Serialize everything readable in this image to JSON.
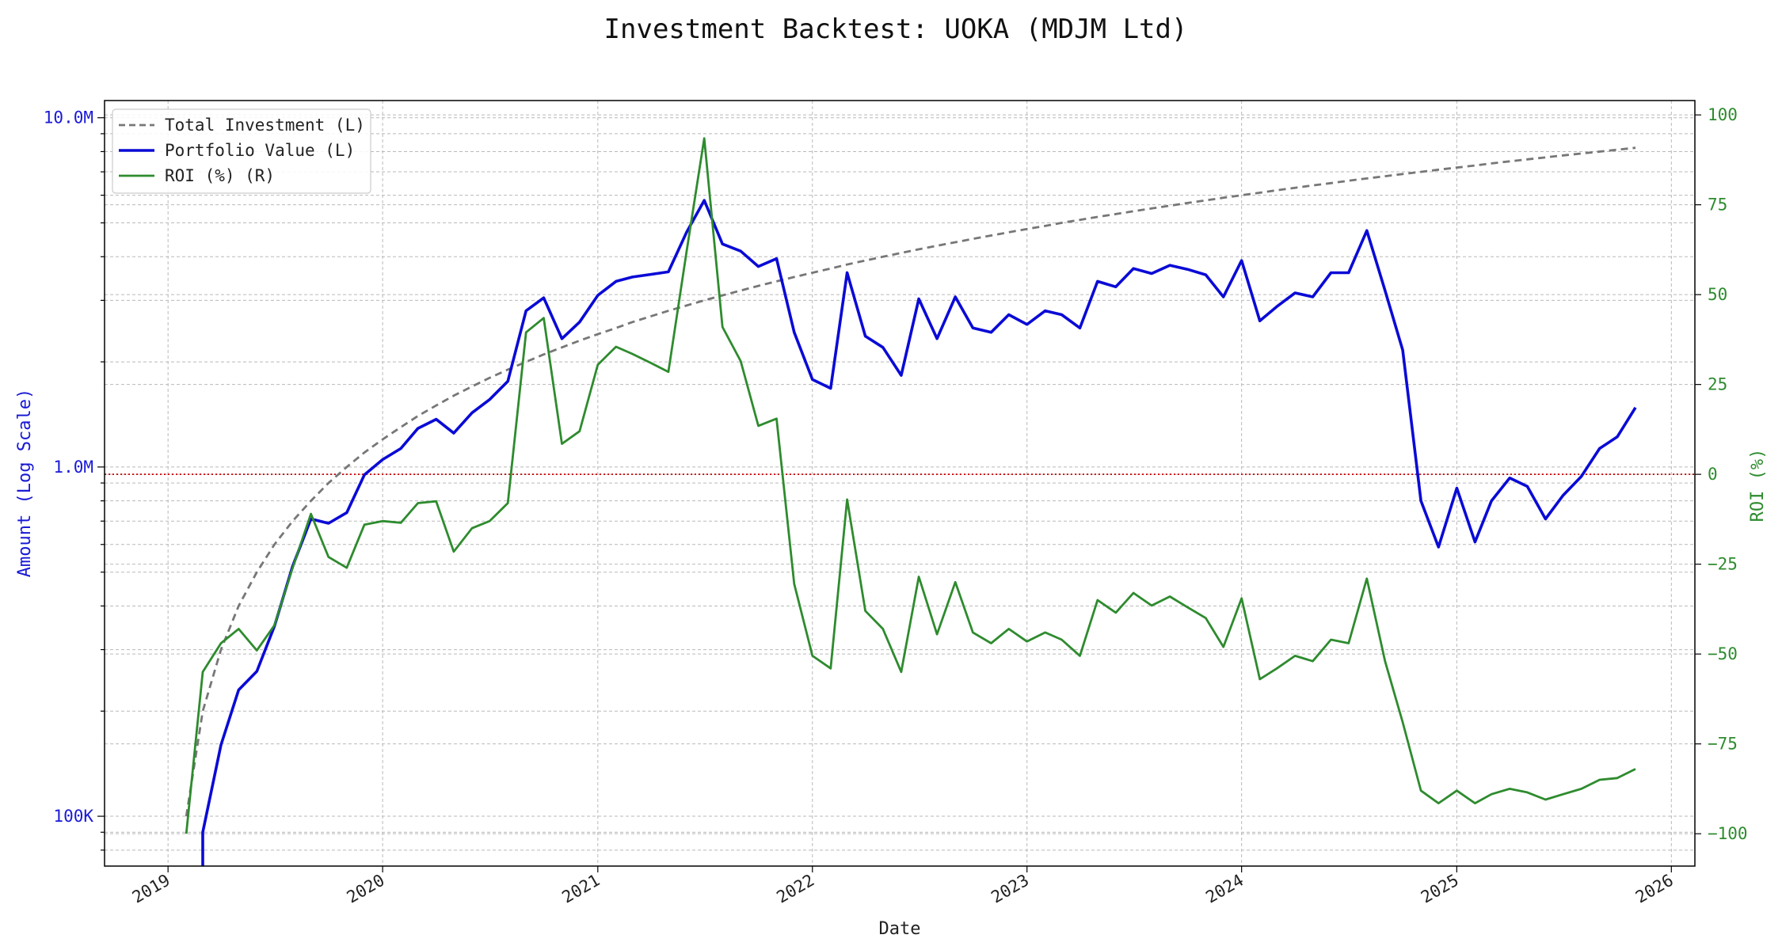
{
  "chart_data": {
    "type": "line",
    "title": "Investment Backtest: UOKA (MDJM Ltd)",
    "xlabel": "Date",
    "ylabel_left": "Amount (Log Scale)",
    "ylabel_right": "ROI (%)",
    "left_axis": {
      "scale": "log",
      "ylim": [
        72000,
        11200000
      ],
      "ticks": [
        100000,
        1000000,
        10000000
      ],
      "tick_labels": [
        "100K",
        "1.0M",
        "10.0M"
      ]
    },
    "right_axis": {
      "scale": "linear",
      "ylim": [
        -109,
        104
      ],
      "ticks": [
        -100,
        -75,
        -50,
        -25,
        0,
        25,
        50,
        75,
        100
      ],
      "tick_labels": [
        "−100",
        "−75",
        "−50",
        "−25",
        "0",
        "25",
        "50",
        "75",
        "100"
      ]
    },
    "x_axis": {
      "xlim": [
        "2018-09-15",
        "2026-02-10"
      ],
      "ticks": [
        "2019-01-01",
        "2020-01-01",
        "2021-01-01",
        "2022-01-01",
        "2023-01-01",
        "2024-01-01",
        "2025-01-01",
        "2026-01-01"
      ],
      "tick_labels": [
        "2019",
        "2020",
        "2021",
        "2022",
        "2023",
        "2024",
        "2025",
        "2026"
      ]
    },
    "grid": true,
    "legend_position": "top-left",
    "reference_line": {
      "axis": "right",
      "value": 0,
      "color": "#cc0000"
    },
    "colors": {
      "total_investment": "#777777",
      "portfolio_value": "#0a0ad6",
      "roi": "#2e8b2e",
      "left_axis": "#1a1ad6",
      "right_axis": "#2e8b2e"
    },
    "x": [
      "2019-02-01",
      "2019-03-01",
      "2019-04-01",
      "2019-05-01",
      "2019-06-01",
      "2019-07-01",
      "2019-08-01",
      "2019-09-01",
      "2019-10-01",
      "2019-11-01",
      "2019-12-01",
      "2020-01-01",
      "2020-02-01",
      "2020-03-01",
      "2020-04-01",
      "2020-05-01",
      "2020-06-01",
      "2020-07-01",
      "2020-08-01",
      "2020-09-01",
      "2020-10-01",
      "2020-11-01",
      "2020-12-01",
      "2021-01-01",
      "2021-02-01",
      "2021-03-01",
      "2021-04-01",
      "2021-05-01",
      "2021-06-01",
      "2021-07-01",
      "2021-08-01",
      "2021-09-01",
      "2021-10-01",
      "2021-11-01",
      "2021-12-01",
      "2022-01-01",
      "2022-02-01",
      "2022-03-01",
      "2022-04-01",
      "2022-05-01",
      "2022-06-01",
      "2022-07-01",
      "2022-08-01",
      "2022-09-01",
      "2022-10-01",
      "2022-11-01",
      "2022-12-01",
      "2023-01-01",
      "2023-02-01",
      "2023-03-01",
      "2023-04-01",
      "2023-05-01",
      "2023-06-01",
      "2023-07-01",
      "2023-08-01",
      "2023-09-01",
      "2023-10-01",
      "2023-11-01",
      "2023-12-01",
      "2024-01-01",
      "2024-02-01",
      "2024-03-01",
      "2024-04-01",
      "2024-05-01",
      "2024-06-01",
      "2024-07-01",
      "2024-08-01",
      "2024-09-01",
      "2024-10-01",
      "2024-11-01",
      "2024-12-01",
      "2025-01-01",
      "2025-02-01",
      "2025-03-01",
      "2025-04-01",
      "2025-05-01",
      "2025-06-01",
      "2025-07-01",
      "2025-08-01",
      "2025-09-01",
      "2025-10-01",
      "2025-11-01"
    ],
    "series": [
      {
        "name": "Total Investment (L)",
        "axis": "left",
        "style": "dashed",
        "values": [
          100000,
          200000,
          300000,
          400000,
          500000,
          600000,
          700000,
          800000,
          900000,
          1000000,
          1100000,
          1200000,
          1300000,
          1400000,
          1500000,
          1600000,
          1700000,
          1800000,
          1900000,
          2000000,
          2100000,
          2200000,
          2300000,
          2400000,
          2500000,
          2600000,
          2700000,
          2800000,
          2900000,
          3000000,
          3100000,
          3200000,
          3300000,
          3400000,
          3500000,
          3600000,
          3700000,
          3800000,
          3900000,
          4000000,
          4100000,
          4200000,
          4300000,
          4400000,
          4500000,
          4600000,
          4700000,
          4800000,
          4900000,
          5000000,
          5100000,
          5200000,
          5300000,
          5400000,
          5500000,
          5600000,
          5700000,
          5800000,
          5900000,
          6000000,
          6100000,
          6200000,
          6300000,
          6400000,
          6500000,
          6600000,
          6700000,
          6800000,
          6900000,
          7000000,
          7100000,
          7200000,
          7300000,
          7400000,
          7500000,
          7600000,
          7700000,
          7800000,
          7900000,
          8000000,
          8100000,
          8200000
        ]
      },
      {
        "name": "Portfolio Value (L)",
        "axis": "left",
        "style": "solid",
        "values": [
          null,
          90000,
          160000,
          230000,
          260000,
          350000,
          520000,
          710000,
          690000,
          740000,
          950000,
          1050000,
          1130000,
          1290000,
          1370000,
          1250000,
          1430000,
          1560000,
          1760000,
          2800000,
          3050000,
          2330000,
          2600000,
          3100000,
          3400000,
          3500000,
          3560000,
          3620000,
          4700000,
          5800000,
          4350000,
          4150000,
          3750000,
          3950000,
          2430000,
          1780000,
          1680000,
          3600000,
          2370000,
          2200000,
          1830000,
          3030000,
          2330000,
          3070000,
          2500000,
          2430000,
          2730000,
          2560000,
          2800000,
          2730000,
          2500000,
          3400000,
          3280000,
          3700000,
          3580000,
          3780000,
          3680000,
          3550000,
          3070000,
          3900000,
          2620000,
          2880000,
          3150000,
          3070000,
          3600000,
          3600000,
          4750000,
          3200000,
          2160000,
          800000,
          590000,
          870000,
          610000,
          800000,
          930000,
          880000,
          710000,
          830000,
          940000,
          1130000,
          1220000,
          1480000
        ]
      },
      {
        "name": "ROI (%) (R)",
        "axis": "right",
        "style": "solid",
        "values": [
          -100,
          -55,
          -47,
          -43,
          -49,
          -42,
          -26,
          -11,
          -23,
          -26,
          -14,
          -13,
          -13.5,
          -8,
          -7.5,
          -21.5,
          -15,
          -13,
          -8,
          39.5,
          43.5,
          8.5,
          12,
          30.5,
          35.5,
          33.5,
          31,
          28.5,
          62,
          93.5,
          41,
          31.5,
          13.5,
          15.5,
          -30.5,
          -50.5,
          -54,
          -7,
          -38,
          -43,
          -55,
          -28.5,
          -44.5,
          -30,
          -44,
          -47,
          -43,
          -46.5,
          -44,
          -46,
          -50.5,
          -35,
          -38.5,
          -33,
          -36.5,
          -34,
          -37,
          -40,
          -48,
          -34.5,
          -57,
          -54,
          -50.5,
          -52,
          -46,
          -47,
          -29,
          -52,
          -69,
          -88,
          -91.5,
          -88,
          -91.5,
          -89,
          -87.5,
          -88.5,
          -90.5,
          -89,
          -87.5,
          -85,
          -84.5,
          -82
        ]
      }
    ]
  }
}
